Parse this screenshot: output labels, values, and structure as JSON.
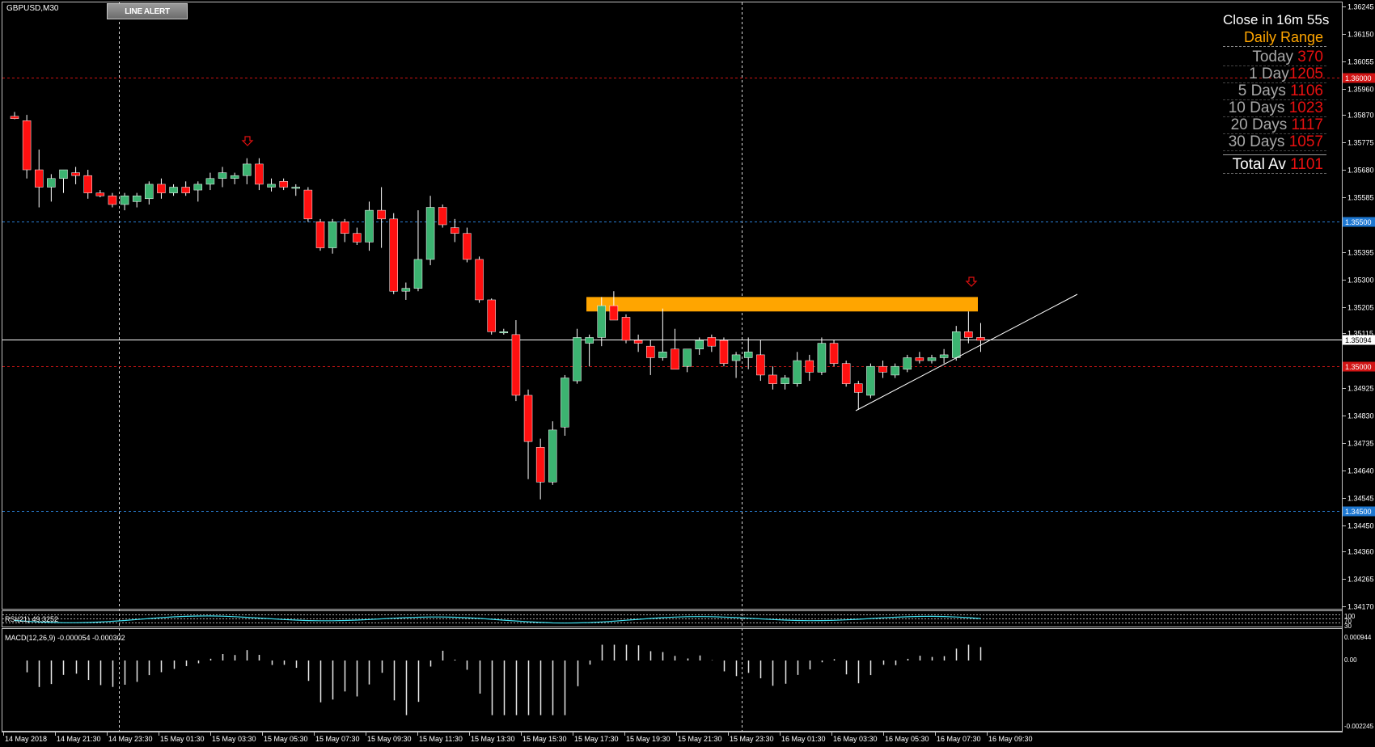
{
  "window": {
    "symbol_label": "GBPUSD,M30"
  },
  "toolbar": {
    "line_alert_label": "LINE ALERT"
  },
  "info_panel": {
    "close_timer": "Close in 16m 55s",
    "heading": "Daily Range",
    "rows": [
      {
        "label": "Today",
        "value": "370"
      },
      {
        "label": "1 Day",
        "value": "1205"
      },
      {
        "label": "5 Days",
        "value": "1106"
      },
      {
        "label": "10 Days",
        "value": "1023"
      },
      {
        "label": "20 Days",
        "value": "1117"
      },
      {
        "label": "30 Days",
        "value": "1057"
      }
    ],
    "total": {
      "label": "Total Av",
      "value": "1101"
    }
  },
  "indicators": {
    "rsi_label": "RSI(21) 49.3252",
    "macd_label": "MACD(12,26,9) -0.000054 -0.000302"
  },
  "colors": {
    "bull": "#3cb371",
    "bear": "#ff1010",
    "background": "#000000",
    "resistance_zone": "#ffa500",
    "red_level": "#c81414",
    "blue_level": "#2a7fd4"
  },
  "chart_data": {
    "type": "candlestick",
    "symbol": "GBPUSD",
    "timeframe": "M30",
    "ylim": [
      1.3417,
      1.36245
    ],
    "y_ticks": [
      "1.36245",
      "1.36150",
      "1.36055",
      "1.35960",
      "1.35870",
      "1.35775",
      "1.35680",
      "1.35585",
      "1.35395",
      "1.35300",
      "1.35205",
      "1.35115",
      "1.34925",
      "1.34830",
      "1.34735",
      "1.34640",
      "1.34545",
      "1.34450",
      "1.34360",
      "1.34265",
      "1.34170"
    ],
    "x_ticks": [
      "14 May 2018",
      "14 May 21:30",
      "14 May 23:30",
      "15 May 01:30",
      "15 May 03:30",
      "15 May 05:30",
      "15 May 07:30",
      "15 May 09:30",
      "15 May 11:30",
      "15 May 13:30",
      "15 May 15:30",
      "15 May 17:30",
      "15 May 19:30",
      "15 May 21:30",
      "15 May 23:30",
      "16 May 01:30",
      "16 May 03:30",
      "16 May 05:30",
      "16 May 07:30",
      "16 May 09:30"
    ],
    "levels": [
      {
        "price": 1.36,
        "label": "1.36000",
        "style": "red"
      },
      {
        "price": 1.355,
        "label": "1.35500",
        "style": "blue"
      },
      {
        "price": 1.35094,
        "label": "1.35094",
        "style": "current"
      },
      {
        "price": 1.35,
        "label": "1.35000",
        "style": "red"
      },
      {
        "price": 1.345,
        "label": "1.34500",
        "style": "blue"
      }
    ],
    "resistance_zone": {
      "low": 1.3519,
      "high": 1.3524
    },
    "candles": [
      [
        1.35865,
        1.3588,
        1.35855,
        1.35857
      ],
      [
        1.3585,
        1.3587,
        1.3565,
        1.3568
      ],
      [
        1.3568,
        1.3575,
        1.3555,
        1.3562
      ],
      [
        1.3562,
        1.35665,
        1.3557,
        1.3565
      ],
      [
        1.3565,
        1.3568,
        1.356,
        1.3568
      ],
      [
        1.3567,
        1.3569,
        1.3563,
        1.3566
      ],
      [
        1.3566,
        1.3568,
        1.3558,
        1.356
      ],
      [
        1.356,
        1.3561,
        1.35585,
        1.3559
      ],
      [
        1.3559,
        1.356,
        1.3555,
        1.3556
      ],
      [
        1.3556,
        1.356,
        1.3554,
        1.3559
      ],
      [
        1.3557,
        1.356,
        1.3555,
        1.3559
      ],
      [
        1.3558,
        1.3564,
        1.3556,
        1.3563
      ],
      [
        1.3563,
        1.3565,
        1.3558,
        1.356
      ],
      [
        1.356,
        1.3563,
        1.3559,
        1.3562
      ],
      [
        1.3562,
        1.3564,
        1.3559,
        1.356
      ],
      [
        1.3561,
        1.3564,
        1.3557,
        1.3563
      ],
      [
        1.3563,
        1.3567,
        1.3561,
        1.3565
      ],
      [
        1.3565,
        1.3569,
        1.3562,
        1.3567
      ],
      [
        1.3565,
        1.3567,
        1.3563,
        1.3566
      ],
      [
        1.3566,
        1.3572,
        1.3563,
        1.357
      ],
      [
        1.357,
        1.3572,
        1.3561,
        1.3563
      ],
      [
        1.3562,
        1.3565,
        1.35605,
        1.3563
      ],
      [
        1.3564,
        1.3565,
        1.3561,
        1.3562
      ],
      [
        1.3562,
        1.3563,
        1.3559,
        1.3562
      ],
      [
        1.3561,
        1.3562,
        1.355,
        1.3551
      ],
      [
        1.355,
        1.3551,
        1.354,
        1.3541
      ],
      [
        1.3541,
        1.3551,
        1.3539,
        1.355
      ],
      [
        1.355,
        1.3551,
        1.3543,
        1.3546
      ],
      [
        1.3546,
        1.3548,
        1.3542,
        1.3543
      ],
      [
        1.3543,
        1.3557,
        1.354,
        1.3554
      ],
      [
        1.3554,
        1.3562,
        1.3541,
        1.3551
      ],
      [
        1.3551,
        1.3553,
        1.3525,
        1.3526
      ],
      [
        1.3526,
        1.3529,
        1.3523,
        1.3527
      ],
      [
        1.3527,
        1.3554,
        1.3526,
        1.3537
      ],
      [
        1.3537,
        1.3559,
        1.3535,
        1.3555
      ],
      [
        1.3555,
        1.3556,
        1.3548,
        1.3549
      ],
      [
        1.3548,
        1.3551,
        1.3543,
        1.3546
      ],
      [
        1.3546,
        1.3548,
        1.3536,
        1.3537
      ],
      [
        1.3537,
        1.3538,
        1.3522,
        1.3523
      ],
      [
        1.3523,
        1.35235,
        1.3511,
        1.3512
      ],
      [
        1.3512,
        1.3513,
        1.3511,
        1.3512
      ],
      [
        1.3511,
        1.3516,
        1.3488,
        1.349
      ],
      [
        1.349,
        1.3492,
        1.3461,
        1.3474
      ],
      [
        1.3472,
        1.3475,
        1.3454,
        1.346
      ],
      [
        1.346,
        1.3481,
        1.3459,
        1.3478
      ],
      [
        1.3479,
        1.3497,
        1.3476,
        1.3496
      ],
      [
        1.3495,
        1.3513,
        1.3494,
        1.351
      ],
      [
        1.3508,
        1.3511,
        1.35,
        1.351
      ],
      [
        1.351,
        1.3524,
        1.3507,
        1.3521
      ],
      [
        1.3521,
        1.3526,
        1.3518,
        1.3516
      ],
      [
        1.3517,
        1.3518,
        1.3508,
        1.3509
      ],
      [
        1.3509,
        1.3511,
        1.3505,
        1.3508
      ],
      [
        1.3507,
        1.3509,
        1.3497,
        1.3503
      ],
      [
        1.3503,
        1.352,
        1.3502,
        1.3505
      ],
      [
        1.3506,
        1.3513,
        1.3499,
        1.3499
      ],
      [
        1.35,
        1.3506,
        1.3498,
        1.3506
      ],
      [
        1.3506,
        1.351,
        1.3504,
        1.3509
      ],
      [
        1.351,
        1.3511,
        1.3505,
        1.3507
      ],
      [
        1.3509,
        1.351,
        1.35,
        1.3501
      ],
      [
        1.3502,
        1.3505,
        1.3496,
        1.3504
      ],
      [
        1.3503,
        1.351,
        1.3499,
        1.3505
      ],
      [
        1.3504,
        1.3509,
        1.3495,
        1.3497
      ],
      [
        1.3497,
        1.35,
        1.3492,
        1.3494
      ],
      [
        1.3494,
        1.3497,
        1.3492,
        1.3496
      ],
      [
        1.3494,
        1.3505,
        1.3493,
        1.3502
      ],
      [
        1.3502,
        1.3504,
        1.3495,
        1.3498
      ],
      [
        1.3498,
        1.351,
        1.3497,
        1.3508
      ],
      [
        1.3508,
        1.3509,
        1.35,
        1.3501
      ],
      [
        1.3501,
        1.3502,
        1.3493,
        1.3494
      ],
      [
        1.3494,
        1.3495,
        1.3485,
        1.3491
      ],
      [
        1.349,
        1.3501,
        1.3489,
        1.35
      ],
      [
        1.35,
        1.3502,
        1.3496,
        1.3498
      ],
      [
        1.3497,
        1.3501,
        1.3496,
        1.35
      ],
      [
        1.3499,
        1.3504,
        1.3498,
        1.3503
      ],
      [
        1.3503,
        1.3505,
        1.3501,
        1.3502
      ],
      [
        1.3502,
        1.3504,
        1.3501,
        1.3503
      ],
      [
        1.3503,
        1.3506,
        1.3501,
        1.3504
      ],
      [
        1.3503,
        1.3514,
        1.3502,
        1.3512
      ],
      [
        1.3512,
        1.3519,
        1.3508,
        1.351
      ],
      [
        1.351,
        1.3515,
        1.3505,
        1.3509
      ]
    ]
  }
}
